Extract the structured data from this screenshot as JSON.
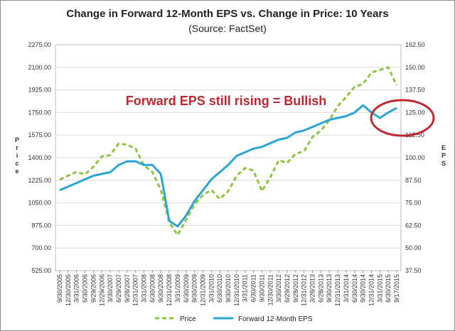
{
  "chart_data": {
    "type": "line",
    "title": "Change in Forward 12-Month EPS vs. Change in Price: 10 Years",
    "subtitle": "(Source: FactSet)",
    "ylabel_left": "Price",
    "ylabel_right": "EPS",
    "annotation": "Forward EPS still rising = Bullish",
    "left_axis": {
      "range": [
        525,
        2275
      ],
      "ticks": [
        "525.00",
        "700.00",
        "875.00",
        "1050.00",
        "1225.00",
        "1400.00",
        "1575.00",
        "1750.00",
        "1925.00",
        "2100.00",
        "2275.00"
      ]
    },
    "right_axis": {
      "range": [
        37.5,
        162.5
      ],
      "ticks": [
        "37.50",
        "50.00",
        "62.50",
        "75.00",
        "87.50",
        "100.00",
        "112.50",
        "125.00",
        "137.50",
        "150.00",
        "162.50"
      ]
    },
    "x_ticks": [
      "9/30/2005",
      "12/30/2005",
      "3/31/2006",
      "6/30/2006",
      "9/29/2006",
      "12/29/2006",
      "3/30/2007",
      "6/29/2007",
      "9/28/2007",
      "12/31/2007",
      "3/31/2008",
      "6/30/2008",
      "9/30/2008",
      "12/31/2008",
      "3/31/2009",
      "6/30/2009",
      "9/30/2009",
      "12/31/2009",
      "3/31/2010",
      "6/30/2010",
      "9/30/2010",
      "12/31/2010",
      "3/31/2011",
      "6/30/2011",
      "9/30/2011",
      "12/30/2011",
      "3/30/2012",
      "6/29/2012",
      "9/28/2012",
      "12/31/2012",
      "3/28/2013",
      "6/28/2013",
      "9/30/2013",
      "12/31/2013",
      "3/31/2014",
      "6/30/2014",
      "9/30/2014",
      "12/31/2014",
      "3/31/2015",
      "6/30/2015",
      "9/17/2015"
    ],
    "series": [
      {
        "name": "Price",
        "axis": "left",
        "color": "#8dc63f",
        "style": "dashed",
        "values": [
          1230,
          1260,
          1290,
          1270,
          1330,
          1410,
          1420,
          1510,
          1500,
          1470,
          1340,
          1290,
          1150,
          900,
          800,
          920,
          1040,
          1110,
          1150,
          1080,
          1140,
          1260,
          1320,
          1300,
          1140,
          1250,
          1380,
          1360,
          1430,
          1450,
          1560,
          1610,
          1690,
          1800,
          1870,
          1950,
          1970,
          2060,
          2080,
          2100,
          1960
        ]
      },
      {
        "name": "Forward 12-Month EPS",
        "axis": "right",
        "color": "#2aa6d6",
        "style": "solid",
        "values": [
          82,
          84,
          86,
          88,
          90,
          91,
          92,
          96,
          98,
          98,
          96,
          96,
          91,
          65,
          62,
          68,
          76,
          82,
          88,
          92,
          96,
          101,
          103,
          105,
          106,
          108,
          110,
          111,
          114,
          115,
          117,
          119,
          121,
          122,
          123,
          125,
          129,
          125,
          122,
          125,
          127.5
        ]
      }
    ],
    "legend": [
      "Price",
      "Forward 12-Month EPS"
    ]
  }
}
